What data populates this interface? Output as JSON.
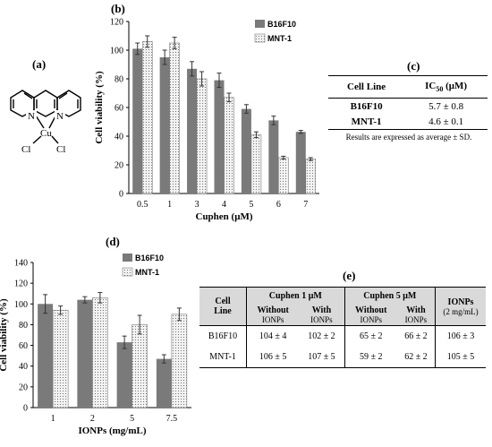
{
  "panel_labels": {
    "a": "(a)",
    "b": "(b)",
    "c": "(c)",
    "d": "(d)",
    "e": "(e)"
  },
  "molecule": {
    "metal": "Cu",
    "ligand_atoms": [
      "N",
      "N"
    ],
    "halides": [
      "Cl",
      "Cl"
    ]
  },
  "colors": {
    "b16f10": "#7a7a7a",
    "mnt1": "#f2f2f2",
    "table_header": "#d9d9d9"
  },
  "chart_data": [
    {
      "type": "bar",
      "panel": "(b)",
      "categories": [
        "0.5",
        "1",
        "3",
        "4",
        "5",
        "6",
        "7"
      ],
      "xlabel": "Cuphen (μM)",
      "ylabel": "Cell viability (%)",
      "ylim": [
        0,
        120
      ],
      "yticks": [
        0,
        20,
        40,
        60,
        80,
        100,
        120
      ],
      "legend_position": "top-right",
      "series": [
        {
          "name": "B16F10",
          "values": [
            101,
            95,
            87,
            79,
            59,
            51,
            43
          ],
          "errors": [
            4,
            5,
            5,
            5,
            3,
            3,
            1
          ]
        },
        {
          "name": "MNT-1",
          "values": [
            106,
            105,
            80,
            67,
            41,
            25,
            24
          ],
          "errors": [
            4,
            4,
            5,
            3,
            2,
            1,
            1
          ]
        }
      ]
    },
    {
      "type": "bar",
      "panel": "(d)",
      "categories": [
        "1",
        "2",
        "5",
        "7.5"
      ],
      "xlabel": "IONPs (mg/mL)",
      "ylabel": "Cell viability (%)",
      "ylim": [
        0,
        140
      ],
      "yticks": [
        0,
        20,
        40,
        60,
        80,
        100,
        120,
        140
      ],
      "legend_position": "top-right",
      "series": [
        {
          "name": "B16F10",
          "values": [
            100,
            104,
            63,
            47
          ],
          "errors": [
            9,
            3,
            6,
            4
          ]
        },
        {
          "name": "MNT-1",
          "values": [
            94,
            106,
            80,
            90
          ],
          "errors": [
            4,
            5,
            9,
            6
          ]
        }
      ]
    }
  ],
  "table_c": {
    "headers": [
      "Cell Line",
      "IC50 (μM)"
    ],
    "ic_label": "IC",
    "ic_sub": "50",
    "ic_unit": " (μM)",
    "rows": [
      [
        "B16F10",
        "5.7 ± 0.8"
      ],
      [
        "MNT-1",
        "4.6 ± 0.1"
      ]
    ],
    "note": "Results are expressed as average ± SD."
  },
  "table_e": {
    "col_cell_line": [
      "Cell",
      "Line"
    ],
    "group1": "Cuphen 1 μM",
    "group2": "Cuphen 5 μM",
    "group3": [
      "IONPs",
      "(2 mg/mL)"
    ],
    "sub_without": [
      "Without",
      "IONPs"
    ],
    "sub_with": [
      "With",
      "IONPs"
    ],
    "rows": [
      [
        "B16F10",
        "104 ± 4",
        "102 ± 2",
        "65 ± 2",
        "66 ± 2",
        "106 ± 3"
      ],
      [
        "MNT-1",
        "106 ± 5",
        "107 ± 5",
        "59 ± 2",
        "62 ± 2",
        "105 ± 5"
      ]
    ]
  }
}
